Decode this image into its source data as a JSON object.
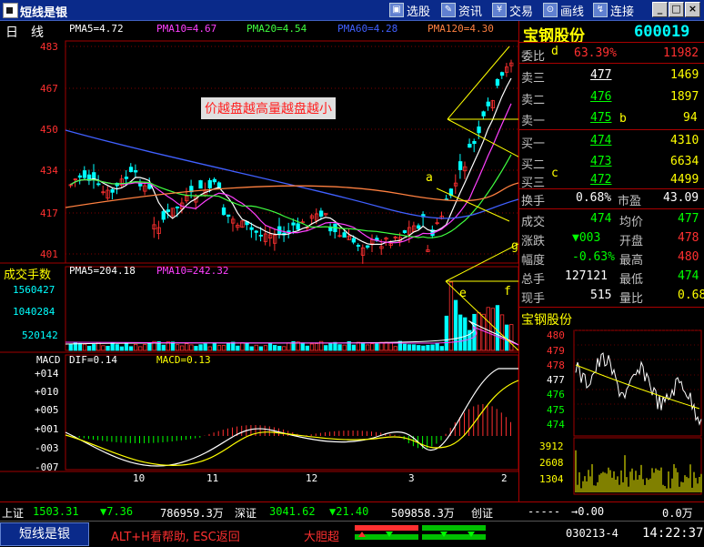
{
  "window": {
    "title": "短线是银",
    "toolbar": [
      {
        "label": "选股",
        "icon": "stock-select-icon"
      },
      {
        "label": "资讯",
        "icon": "news-icon"
      },
      {
        "label": "交易",
        "icon": "trade-icon"
      },
      {
        "label": "画线",
        "icon": "draw-line-icon"
      },
      {
        "label": "连接",
        "icon": "connect-icon"
      }
    ],
    "controls": [
      "_",
      "□",
      "×"
    ]
  },
  "price_panel": {
    "period": "日　线",
    "ma_labels": [
      {
        "text": "PMA5=4.72",
        "color": "#ffffff"
      },
      {
        "text": "PMA10=4.67",
        "color": "#ff40ff"
      },
      {
        "text": "PMA20=4.54",
        "color": "#40ff40"
      },
      {
        "text": "PMA60=4.28",
        "color": "#4060ff"
      },
      {
        "text": "PMA120=4.30",
        "color": "#ff8040"
      }
    ],
    "y_ticks": [
      "483",
      "467",
      "450",
      "434",
      "417",
      "401"
    ],
    "note": "价越盘越高量越盘越小",
    "annotations": [
      "a",
      "b",
      "c",
      "d",
      "g"
    ]
  },
  "volume_panel": {
    "title": "成交手数",
    "ma_labels": [
      {
        "text": "PMA5=204.18",
        "color": "#ffffff"
      },
      {
        "text": "PMA10=242.32",
        "color": "#ff40ff"
      }
    ],
    "y_ticks": [
      "1560427",
      "1040284",
      "520142"
    ],
    "annotations": [
      "e",
      "f"
    ]
  },
  "macd_panel": {
    "title": "MACD",
    "labels": [
      {
        "text": "DIF=0.14",
        "color": "#ffffff"
      },
      {
        "text": "MACD=0.13",
        "color": "#ffff00"
      }
    ],
    "y_ticks": [
      "+014",
      "+010",
      "+005",
      "+001",
      "-003",
      "-007"
    ],
    "x_ticks": [
      "10",
      "11",
      "12",
      "3",
      "2"
    ]
  },
  "quote": {
    "name": "宝钢股份",
    "code": "600019",
    "weibi": {
      "label": "委比",
      "pct": "63.39%",
      "diff": "11982"
    },
    "asks": [
      {
        "label": "卖三",
        "price": "477",
        "vol": "1469"
      },
      {
        "label": "卖二",
        "price": "476",
        "vol": "1897"
      },
      {
        "label": "卖一",
        "price": "475",
        "vol": "94"
      }
    ],
    "bids": [
      {
        "label": "买一",
        "price": "474",
        "vol": "4310"
      },
      {
        "label": "买二",
        "price": "473",
        "vol": "6634"
      },
      {
        "label": "买三",
        "price": "472",
        "vol": "4499"
      }
    ],
    "turnover": {
      "label": "换手",
      "value": "0.68%",
      "pe_label": "市盈",
      "pe": "43.09"
    },
    "stats": [
      {
        "l1": "成交",
        "v1": "474",
        "l2": "均价",
        "v2": "477"
      },
      {
        "l1": "涨跌",
        "v1": "▼003",
        "l2": "开盘",
        "v2": "478"
      },
      {
        "l1": "幅度",
        "v1": "-0.63%",
        "l2": "最高",
        "v2": "480"
      },
      {
        "l1": "总手",
        "v1": "127121",
        "l2": "最低",
        "v2": "474"
      },
      {
        "l1": "现手",
        "v1": "515",
        "l2": "量比",
        "v2": "0.68"
      }
    ],
    "mini_title": "宝钢股份",
    "mini_price_ticks": [
      "480",
      "479",
      "478",
      "477",
      "476",
      "475",
      "474"
    ],
    "mini_vol_ticks": [
      "3912",
      "2608",
      "1304"
    ]
  },
  "ticker": {
    "sh_label": "上证",
    "sh_value": "1503.31",
    "sh_change": "▼7.36",
    "sh_amount": "786959.3万",
    "sz_label": "深证",
    "sz_value": "3041.62",
    "sz_change": "▼21.40",
    "sz_amount": "509858.3万",
    "cy_label": "创证",
    "cy_value": "-----",
    "cy_change": "→0.00",
    "cy_amount": "0.0万"
  },
  "status": {
    "app": "短线是银",
    "help": "ALT+H看帮助, ESC返回",
    "mode": "大胆超",
    "date": "030213-4",
    "time": "14:22:37"
  },
  "colors": {
    "up": "#ff3030",
    "down": "#00ffff",
    "grid": "#a00000",
    "text_green": "#00ff00",
    "text_yellow": "#ffff00"
  }
}
